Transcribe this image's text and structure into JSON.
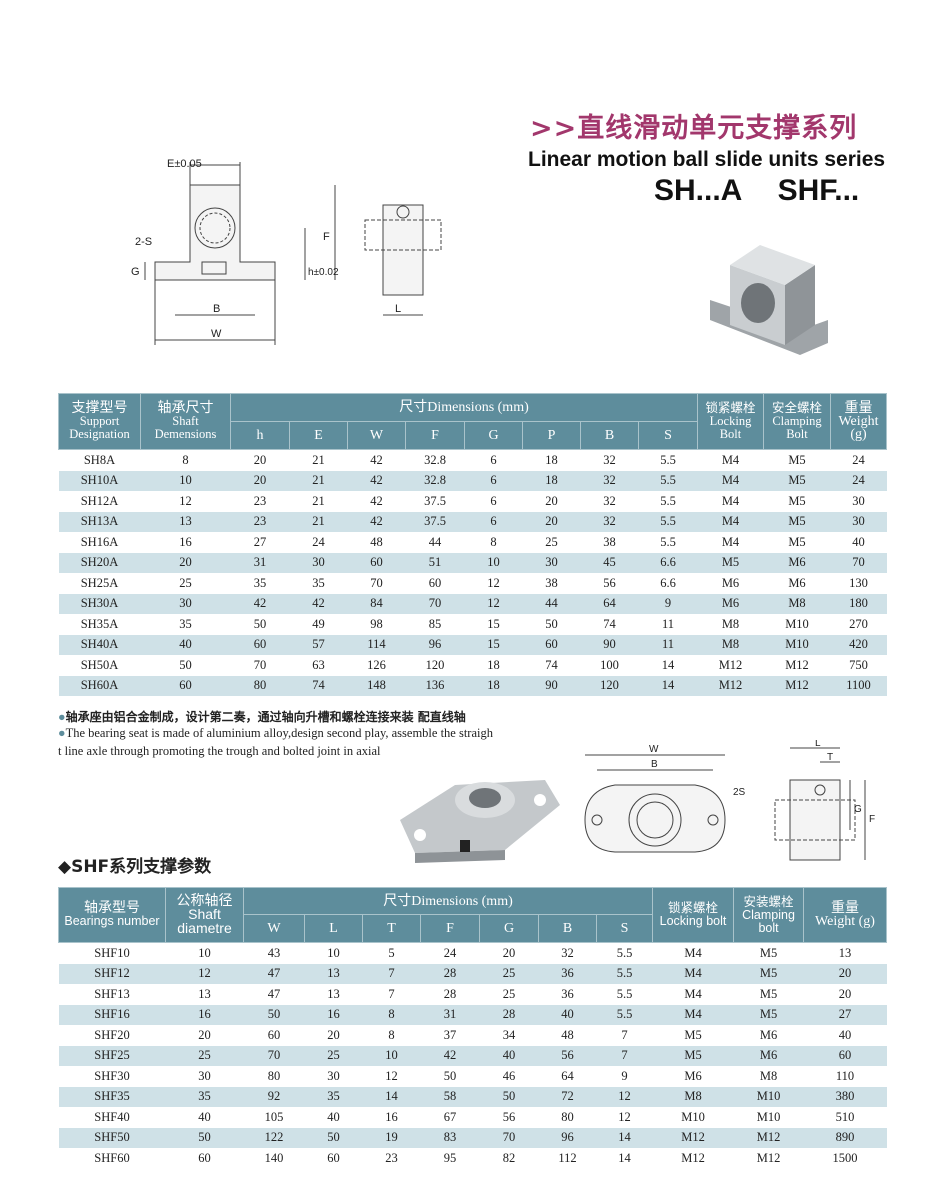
{
  "header": {
    "title_cn": ">>直线滑动单元支撑系列",
    "title_en": "Linear motion ball slide units series",
    "models": "SH...A SHF..."
  },
  "drawing_sh": {
    "labels": {
      "E": "E±0.05",
      "S": "2-S",
      "G": "G",
      "h": "h±0.02",
      "F": "F",
      "B": "B",
      "W": "W",
      "L": "L"
    }
  },
  "drawing_shf": {
    "labels": {
      "W": "W",
      "B": "B",
      "S": "2S",
      "L": "L",
      "T": "T",
      "G": "G",
      "F": "F"
    }
  },
  "sh_table": {
    "headers": {
      "designation_cn": "支撑型号",
      "designation_en": "Support Designation",
      "shaft_cn": "轴承尺寸",
      "shaft_en": "Shaft Demensions",
      "dimensions": "尺寸Dimensions (mm)",
      "dims": [
        "h",
        "E",
        "W",
        "F",
        "G",
        "P",
        "B",
        "S"
      ],
      "locking_cn": "锁紧螺栓",
      "locking_en": "Locking Bolt",
      "clamping_cn": "安全螺栓",
      "clamping_en": "Clamping Bolt",
      "weight_cn": "重量",
      "weight_en": "Weight (g)"
    },
    "rows": [
      [
        "SH8A",
        "8",
        "20",
        "21",
        "42",
        "32.8",
        "6",
        "18",
        "32",
        "5.5",
        "M4",
        "M5",
        "24"
      ],
      [
        "SH10A",
        "10",
        "20",
        "21",
        "42",
        "32.8",
        "6",
        "18",
        "32",
        "5.5",
        "M4",
        "M5",
        "24"
      ],
      [
        "SH12A",
        "12",
        "23",
        "21",
        "42",
        "37.5",
        "6",
        "20",
        "32",
        "5.5",
        "M4",
        "M5",
        "30"
      ],
      [
        "SH13A",
        "13",
        "23",
        "21",
        "42",
        "37.5",
        "6",
        "20",
        "32",
        "5.5",
        "M4",
        "M5",
        "30"
      ],
      [
        "SH16A",
        "16",
        "27",
        "24",
        "48",
        "44",
        "8",
        "25",
        "38",
        "5.5",
        "M4",
        "M5",
        "40"
      ],
      [
        "SH20A",
        "20",
        "31",
        "30",
        "60",
        "51",
        "10",
        "30",
        "45",
        "6.6",
        "M5",
        "M6",
        "70"
      ],
      [
        "SH25A",
        "25",
        "35",
        "35",
        "70",
        "60",
        "12",
        "38",
        "56",
        "6.6",
        "M6",
        "M6",
        "130"
      ],
      [
        "SH30A",
        "30",
        "42",
        "42",
        "84",
        "70",
        "12",
        "44",
        "64",
        "9",
        "M6",
        "M8",
        "180"
      ],
      [
        "SH35A",
        "35",
        "50",
        "49",
        "98",
        "85",
        "15",
        "50",
        "74",
        "11",
        "M8",
        "M10",
        "270"
      ],
      [
        "SH40A",
        "40",
        "60",
        "57",
        "114",
        "96",
        "15",
        "60",
        "90",
        "11",
        "M8",
        "M10",
        "420"
      ],
      [
        "SH50A",
        "50",
        "70",
        "63",
        "126",
        "120",
        "18",
        "74",
        "100",
        "14",
        "M12",
        "M12",
        "750"
      ],
      [
        "SH60A",
        "60",
        "80",
        "74",
        "148",
        "136",
        "18",
        "90",
        "120",
        "14",
        "M12",
        "M12",
        "1100"
      ]
    ]
  },
  "notes": {
    "cn": "轴承座由铝合金制成，设计第二奏，通过轴向升槽和螺栓连接来装 配直线轴",
    "en_line1": "The bearing seat is made of aluminium alloy,design second play, assemble the straigh",
    "en_line2": "t line axle through promoting the trough and bolted joint in axial"
  },
  "shf_section_title": "◆SHF系列支撑参数",
  "shf_table": {
    "headers": {
      "number_cn": "轴承型号",
      "number_en": "Bearings number",
      "shaft_cn": "公称轴径",
      "shaft_en": "Shaft diametre",
      "dimensions": "尺寸Dimensions (mm)",
      "dims": [
        "W",
        "L",
        "T",
        "F",
        "G",
        "B",
        "S"
      ],
      "locking_cn": "锁紧螺栓",
      "locking_en": "Locking bolt",
      "clamping_cn": "安装螺栓",
      "clamping_en": "Clamping bolt",
      "weight_cn": "重量",
      "weight_en": "Weight (g)"
    },
    "rows": [
      [
        "SHF10",
        "10",
        "43",
        "10",
        "5",
        "24",
        "20",
        "32",
        "5.5",
        "M4",
        "M5",
        "13"
      ],
      [
        "SHF12",
        "12",
        "47",
        "13",
        "7",
        "28",
        "25",
        "36",
        "5.5",
        "M4",
        "M5",
        "20"
      ],
      [
        "SHF13",
        "13",
        "47",
        "13",
        "7",
        "28",
        "25",
        "36",
        "5.5",
        "M4",
        "M5",
        "20"
      ],
      [
        "SHF16",
        "16",
        "50",
        "16",
        "8",
        "31",
        "28",
        "40",
        "5.5",
        "M4",
        "M5",
        "27"
      ],
      [
        "SHF20",
        "20",
        "60",
        "20",
        "8",
        "37",
        "34",
        "48",
        "7",
        "M5",
        "M6",
        "40"
      ],
      [
        "SHF25",
        "25",
        "70",
        "25",
        "10",
        "42",
        "40",
        "56",
        "7",
        "M5",
        "M6",
        "60"
      ],
      [
        "SHF30",
        "30",
        "80",
        "30",
        "12",
        "50",
        "46",
        "64",
        "9",
        "M6",
        "M8",
        "110"
      ],
      [
        "SHF35",
        "35",
        "92",
        "35",
        "14",
        "58",
        "50",
        "72",
        "12",
        "M8",
        "M10",
        "380"
      ],
      [
        "SHF40",
        "40",
        "105",
        "40",
        "16",
        "67",
        "56",
        "80",
        "12",
        "M10",
        "M10",
        "510"
      ],
      [
        "SHF50",
        "50",
        "122",
        "50",
        "19",
        "83",
        "70",
        "96",
        "14",
        "M12",
        "M12",
        "890"
      ],
      [
        "SHF60",
        "60",
        "140",
        "60",
        "23",
        "95",
        "82",
        "112",
        "14",
        "M12",
        "M12",
        "1500"
      ]
    ]
  },
  "colors": {
    "title": "#a2376c",
    "header_bg": "#5e8d9c",
    "stripe": "#cfe1e7"
  }
}
